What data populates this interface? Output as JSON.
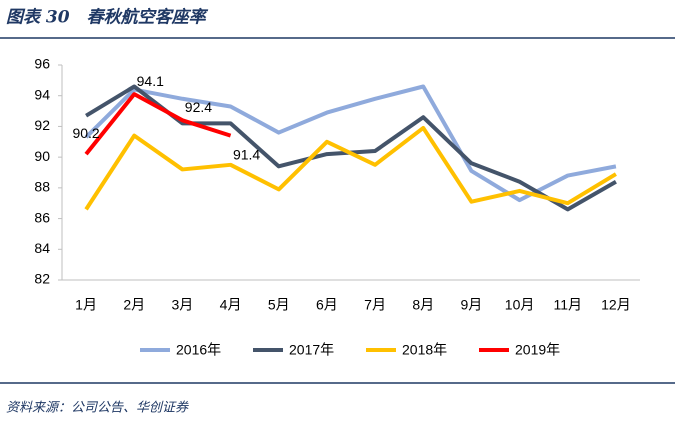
{
  "chart_data": {
    "type": "line",
    "title": "图表 30　春秋航空客座率",
    "source": "资料来源：公司公告、华创证券",
    "categories": [
      "1月",
      "2月",
      "3月",
      "4月",
      "5月",
      "6月",
      "7月",
      "8月",
      "9月",
      "10月",
      "11月",
      "12月"
    ],
    "series": [
      {
        "name": "2016年",
        "color": "#8faadc",
        "values": [
          91.3,
          94.4,
          93.8,
          93.3,
          91.6,
          92.9,
          93.8,
          94.6,
          89.1,
          87.2,
          88.8,
          89.4
        ]
      },
      {
        "name": "2017年",
        "color": "#44546a",
        "values": [
          92.7,
          94.6,
          92.2,
          92.2,
          89.4,
          90.2,
          90.4,
          92.6,
          89.6,
          88.4,
          86.6,
          88.4
        ]
      },
      {
        "name": "2018年",
        "color": "#ffc000",
        "values": [
          86.6,
          91.4,
          89.2,
          89.5,
          87.9,
          91.0,
          89.5,
          91.9,
          87.1,
          87.8,
          87.0,
          88.9
        ]
      },
      {
        "name": "2019年",
        "color": "#ff0000",
        "values": [
          90.2,
          94.1,
          92.4,
          91.4,
          null,
          null,
          null,
          null,
          null,
          null,
          null,
          null
        ],
        "data_labels": true
      }
    ],
    "ylim": [
      82,
      96
    ],
    "yticks": [
      82,
      84,
      86,
      88,
      90,
      92,
      94,
      96
    ]
  }
}
